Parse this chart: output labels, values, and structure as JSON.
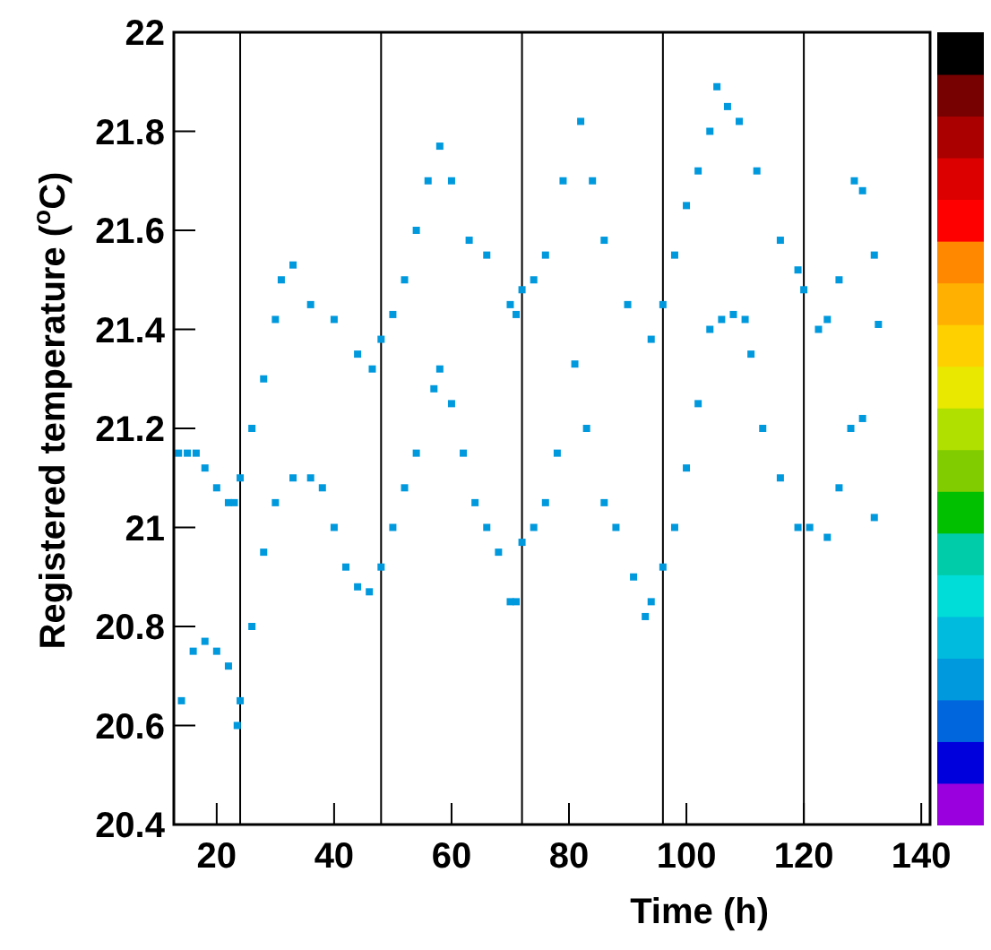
{
  "chart_data": {
    "type": "scatter",
    "xlabel": "Time (h)",
    "ylabel": "Registered temperature ($^{o}$C)",
    "xlim": [
      12.7,
      141.5
    ],
    "ylim": [
      20.4,
      22
    ],
    "xticks": [
      20,
      40,
      60,
      80,
      100,
      120,
      140
    ],
    "yticks": [
      20.4,
      20.6,
      20.8,
      21,
      21.2,
      21.4,
      21.6,
      21.8,
      22
    ],
    "marker": "square",
    "grid": false,
    "series": [
      {
        "color": "#0099dd",
        "x": [
          13.5,
          15,
          16.5,
          18,
          20,
          22,
          23,
          24,
          26,
          28,
          30,
          31,
          33,
          36,
          40,
          44,
          46.5,
          48,
          50,
          52,
          54,
          56,
          58,
          60,
          63,
          66,
          70,
          71,
          72,
          74,
          76,
          79,
          82,
          84,
          86,
          90,
          94,
          96,
          98,
          100,
          102,
          104,
          105.2,
          107,
          109,
          112,
          116,
          119,
          120,
          122.5,
          124,
          126,
          128.6,
          130,
          132,
          132.7
        ],
        "values": [
          21.15,
          21.15,
          21.15,
          21.12,
          21.08,
          21.05,
          21.05,
          21.1,
          21.2,
          21.3,
          21.42,
          21.5,
          21.53,
          21.45,
          21.42,
          21.35,
          21.32,
          21.38,
          21.43,
          21.5,
          21.6,
          21.7,
          21.77,
          21.7,
          21.58,
          21.55,
          21.45,
          21.43,
          21.48,
          21.5,
          21.55,
          21.7,
          21.82,
          21.7,
          21.58,
          21.45,
          21.38,
          21.45,
          21.55,
          21.65,
          21.72,
          21.8,
          21.89,
          21.85,
          21.82,
          21.72,
          21.58,
          21.52,
          21.48,
          21.4,
          21.42,
          21.5,
          21.7,
          21.68,
          21.55,
          21.41
        ]
      },
      {
        "color": "#0099dd",
        "x": [
          14,
          16,
          18,
          20,
          22,
          23.5,
          24,
          26,
          28,
          30,
          33,
          36,
          38,
          40,
          42,
          44,
          46,
          48,
          50,
          52,
          54,
          57,
          58,
          60,
          62,
          64,
          66,
          68,
          70,
          71,
          72,
          74,
          76,
          78,
          81,
          83,
          86,
          88,
          91,
          93,
          94,
          96,
          98,
          100,
          102,
          104,
          106,
          108,
          110,
          111,
          113,
          116,
          119,
          121,
          124,
          126,
          128,
          130,
          132
        ],
        "values": [
          20.65,
          20.75,
          20.77,
          20.75,
          20.72,
          20.6,
          20.65,
          20.8,
          20.95,
          21.05,
          21.1,
          21.1,
          21.08,
          21,
          20.92,
          20.88,
          20.87,
          20.92,
          21,
          21.08,
          21.15,
          21.28,
          21.32,
          21.25,
          21.15,
          21.05,
          21,
          20.95,
          20.85,
          20.85,
          20.97,
          21,
          21.05,
          21.15,
          21.33,
          21.2,
          21.05,
          21,
          20.9,
          20.82,
          20.85,
          20.92,
          21,
          21.12,
          21.25,
          21.4,
          21.42,
          21.43,
          21.42,
          21.35,
          21.2,
          21.1,
          21,
          21,
          20.98,
          21.08,
          21.2,
          21.22,
          21.02
        ]
      }
    ],
    "ref_lines": [
      {
        "axis": "x",
        "value": 24,
        "color": "#000000"
      },
      {
        "axis": "x",
        "value": 48,
        "color": "#000000"
      },
      {
        "axis": "x",
        "value": 72,
        "color": "#000000"
      },
      {
        "axis": "x",
        "value": 96,
        "color": "#000000"
      },
      {
        "axis": "x",
        "value": 120,
        "color": "#000000"
      }
    ]
  }
}
